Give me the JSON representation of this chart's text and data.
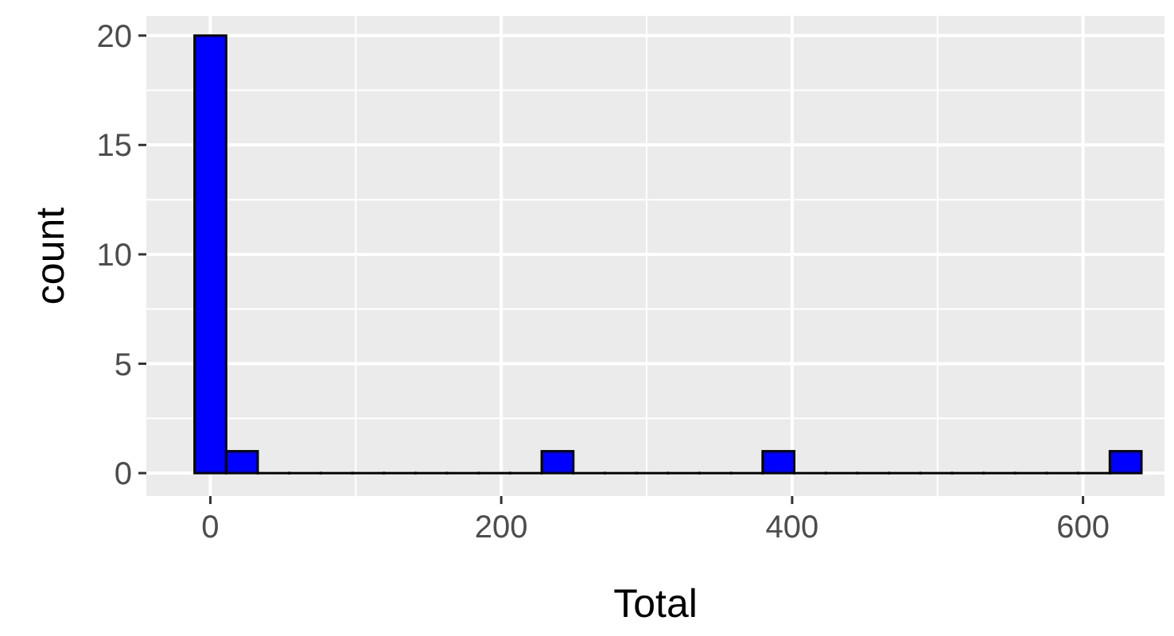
{
  "chart_data": {
    "type": "histogram",
    "xlabel": "Total",
    "ylabel": "count",
    "color": "#0000ff",
    "bins": [
      -10.85,
      10.85,
      32.55,
      54.25,
      75.95,
      97.65,
      119.35,
      141.05,
      162.75,
      184.45,
      206.15,
      227.85,
      249.55,
      271.25,
      292.95,
      314.65,
      336.35,
      358.05,
      379.75,
      401.45,
      423.15,
      444.85,
      466.55,
      488.25,
      509.95,
      531.65,
      553.35,
      575.05,
      596.75,
      618.45,
      640.15
    ],
    "values": [
      20,
      1,
      0,
      0,
      0,
      0,
      0,
      0,
      0,
      0,
      0,
      1,
      0,
      0,
      0,
      0,
      0,
      0,
      1,
      0,
      0,
      0,
      0,
      0,
      0,
      0,
      0,
      0,
      0,
      1
    ],
    "xlim": [
      -44,
      656
    ],
    "xticks": [
      0,
      200,
      400,
      600
    ],
    "ylim": [
      -1.05,
      20.9
    ],
    "yticks": [
      0,
      5,
      10,
      15,
      20
    ],
    "grid": true
  }
}
